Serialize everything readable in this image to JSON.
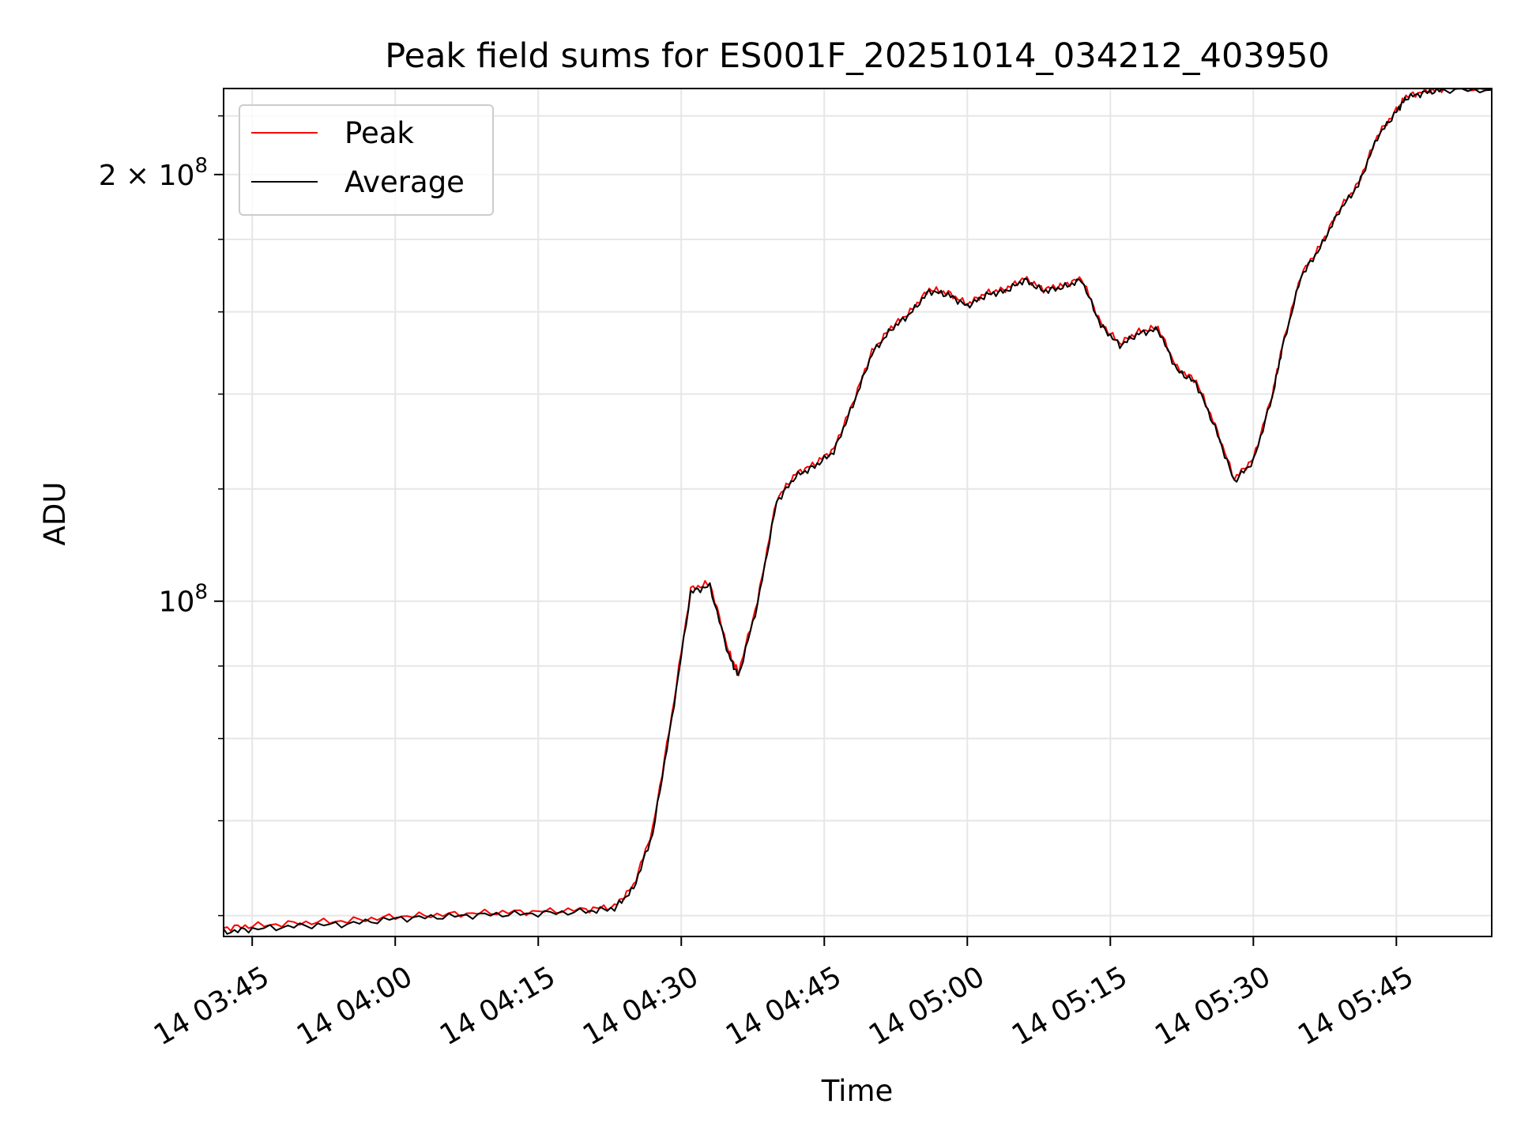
{
  "chart_data": {
    "type": "line",
    "title": "Peak field sums for ES001F_20251014_034212_403950",
    "xlabel": "Time",
    "ylabel": "ADU",
    "yscale": "log",
    "xlim": [
      "2025-10-14 03:42",
      "2025-10-14 05:55"
    ],
    "ylim": [
      58000000,
      230000000
    ],
    "grid": true,
    "legend_position": "top-left",
    "x_ticks": [
      "14 03:45",
      "14 04:00",
      "14 04:15",
      "14 04:30",
      "14 04:45",
      "14 05:00",
      "14 05:15",
      "14 05:30",
      "14 05:45"
    ],
    "y_ticks": [
      {
        "value": 200000000,
        "label": "2 × 10^8",
        "mantissa": "2",
        "exp": "8"
      },
      {
        "value": 100000000,
        "label": "10^8",
        "mantissa": "",
        "exp": "8"
      }
    ],
    "x": [
      "03:42",
      "03:45",
      "03:50",
      "03:55",
      "04:00",
      "04:05",
      "04:10",
      "04:15",
      "04:20",
      "04:23",
      "04:25",
      "04:27",
      "04:29",
      "04:31",
      "04:33",
      "04:35",
      "04:36",
      "04:38",
      "04:40",
      "04:42",
      "04:44",
      "04:46",
      "04:48",
      "04:50",
      "04:52",
      "04:54",
      "04:56",
      "04:58",
      "05:00",
      "05:02",
      "05:04",
      "05:06",
      "05:08",
      "05:10",
      "05:12",
      "05:14",
      "05:16",
      "05:18",
      "05:20",
      "05:22",
      "05:24",
      "05:26",
      "05:28",
      "05:30",
      "05:32",
      "05:33",
      "05:35",
      "05:37",
      "05:39",
      "05:41",
      "05:43",
      "05:45",
      "05:46",
      "05:48",
      "05:50",
      "05:55"
    ],
    "series": [
      {
        "name": "Peak",
        "color": "#ff0000",
        "values": [
          58800000,
          59000000,
          59300000,
          59500000,
          59900000,
          60100000,
          60300000,
          60400000,
          60600000,
          60900000,
          63000000,
          69000000,
          83000000,
          102000000,
          103000000,
          92000000,
          89000000,
          100000000,
          118000000,
          123000000,
          125000000,
          128000000,
          138000000,
          150000000,
          156000000,
          160000000,
          166000000,
          165000000,
          162000000,
          165000000,
          166000000,
          169000000,
          166000000,
          167000000,
          169000000,
          157000000,
          152000000,
          155000000,
          156000000,
          146000000,
          143000000,
          133000000,
          122000000,
          126000000,
          140000000,
          151000000,
          170000000,
          178000000,
          189000000,
          197000000,
          213000000,
          222000000,
          227000000,
          229000000,
          230000000,
          230000000
        ]
      },
      {
        "name": "Average",
        "color": "#000000",
        "values": [
          58400000,
          58700000,
          59000000,
          59200000,
          59700000,
          59900000,
          60100000,
          60200000,
          60400000,
          60700000,
          62700000,
          68500000,
          82500000,
          101500000,
          102500000,
          91500000,
          88500000,
          99500000,
          117500000,
          122500000,
          124500000,
          127500000,
          137500000,
          149500000,
          155500000,
          159500000,
          165500000,
          164500000,
          161500000,
          164500000,
          165500000,
          168500000,
          165500000,
          166500000,
          168500000,
          156500000,
          151500000,
          154500000,
          155500000,
          145500000,
          142500000,
          132500000,
          121500000,
          125500000,
          139500000,
          150500000,
          169500000,
          177500000,
          188500000,
          196500000,
          212500000,
          221500000,
          226500000,
          228500000,
          229500000,
          229500000
        ]
      }
    ]
  }
}
